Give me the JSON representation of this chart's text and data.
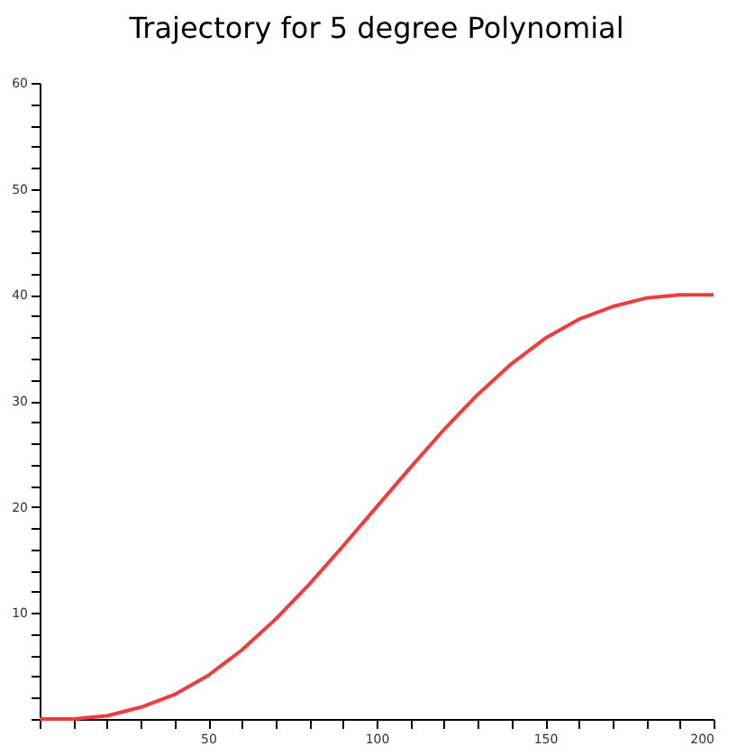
{
  "chart_data": {
    "type": "line",
    "title": "Trajectory for 5 degree Polynomial",
    "x": [
      0,
      10,
      20,
      30,
      40,
      50,
      60,
      70,
      80,
      90,
      100,
      110,
      120,
      130,
      140,
      150,
      160,
      170,
      180,
      190,
      200
    ],
    "series": [
      {
        "color": "#f03c3c",
        "values": [
          0,
          0,
          0.3,
          1.1,
          2.3,
          4.1,
          6.5,
          9.4,
          12.7,
          16.3,
          20,
          23.7,
          27.3,
          30.6,
          33.5,
          35.9,
          37.7,
          38.9,
          39.7,
          40,
          40
        ]
      }
    ],
    "xlim": [
      0,
      200
    ],
    "xticks": [
      {
        "value": 0,
        "label": null
      },
      {
        "value": 10,
        "label": null
      },
      {
        "value": 20,
        "label": null
      },
      {
        "value": 30,
        "label": null
      },
      {
        "value": 40,
        "label": null
      },
      50,
      {
        "value": 60,
        "label": null
      },
      {
        "value": 70,
        "label": null
      },
      {
        "value": 80,
        "label": null
      },
      {
        "value": 90,
        "label": null
      },
      100,
      {
        "value": 110,
        "label": null
      },
      {
        "value": 120,
        "label": null
      },
      {
        "value": 130,
        "label": null
      },
      {
        "value": 140,
        "label": null
      },
      150,
      {
        "value": 160,
        "label": null
      },
      {
        "value": 170,
        "label": null
      },
      {
        "value": 180,
        "label": null
      },
      {
        "value": 190,
        "label": null
      },
      200
    ],
    "ylim": [
      0,
      60
    ],
    "yticks": [
      {
        "value": 0,
        "label": null
      },
      {
        "value": 2,
        "label": null
      },
      {
        "value": 4,
        "label": null
      },
      {
        "value": 6,
        "label": null
      },
      {
        "value": 8,
        "label": null
      },
      10,
      {
        "value": 12,
        "label": null
      },
      {
        "value": 14,
        "label": null
      },
      {
        "value": 16,
        "label": null
      },
      {
        "value": 18,
        "label": null
      },
      20,
      {
        "value": 22,
        "label": null
      },
      {
        "value": 24,
        "label": null
      },
      {
        "value": 26,
        "label": null
      },
      {
        "value": 28,
        "label": null
      },
      30,
      {
        "value": 32,
        "label": null
      },
      {
        "value": 34,
        "label": null
      },
      {
        "value": 36,
        "label": null
      },
      {
        "value": 38,
        "label": null
      },
      40,
      {
        "value": 42,
        "label": null
      },
      {
        "value": 44,
        "label": null
      },
      {
        "value": 46,
        "label": null
      },
      {
        "value": 48,
        "label": null
      },
      50,
      {
        "value": 52,
        "label": null
      },
      {
        "value": 54,
        "label": null
      },
      {
        "value": 56,
        "label": null
      },
      {
        "value": 58,
        "label": null
      },
      60
    ],
    "grid": false,
    "marker": "none",
    "line_style": "solid"
  }
}
